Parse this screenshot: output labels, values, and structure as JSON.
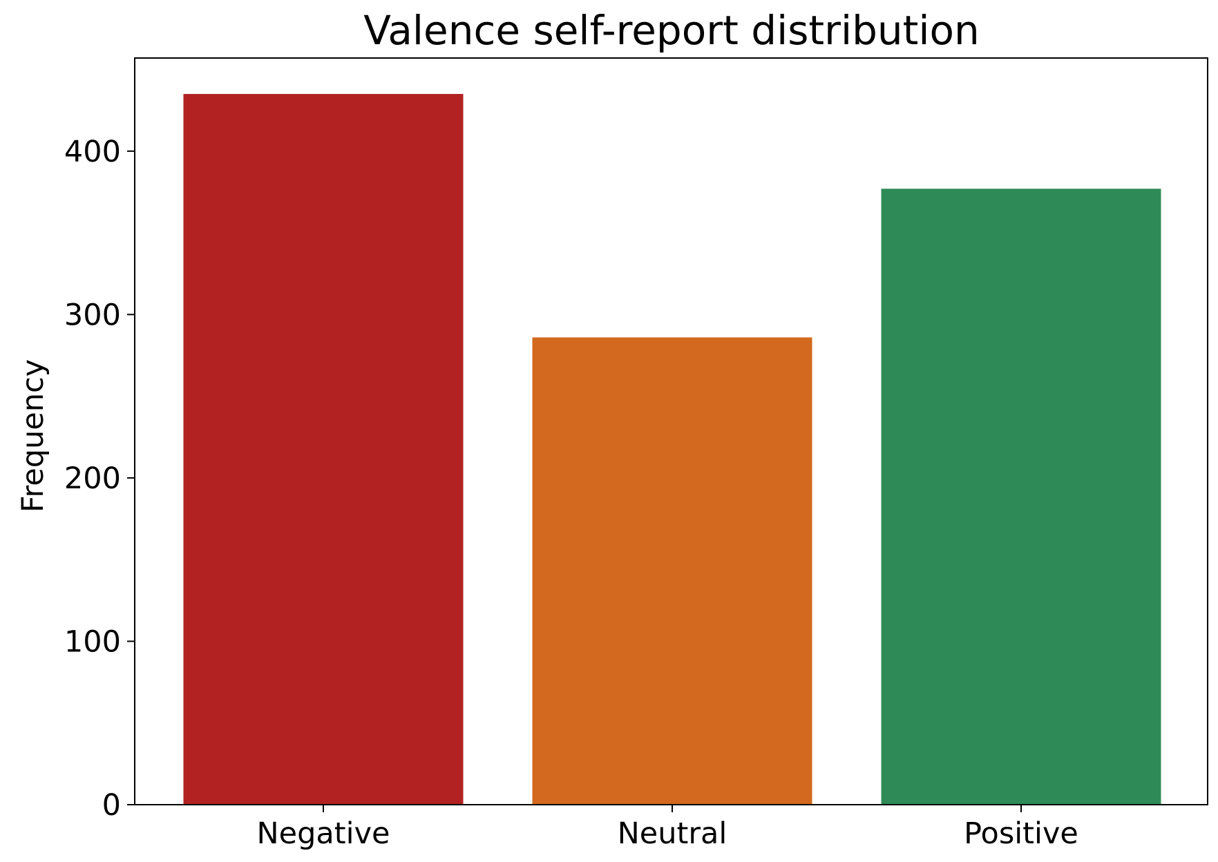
{
  "chart_data": {
    "type": "bar",
    "title": "Valence self-report distribution",
    "xlabel": "",
    "ylabel": "Frequency",
    "categories": [
      "Negative",
      "Neutral",
      "Positive"
    ],
    "values": [
      435,
      286,
      377
    ],
    "colors": [
      "#b22222",
      "#d2691e",
      "#2e8b57"
    ],
    "ylim": [
      0,
      457
    ],
    "yticks": [
      0,
      100,
      200,
      300,
      400
    ],
    "grid": false,
    "legend": "none"
  }
}
